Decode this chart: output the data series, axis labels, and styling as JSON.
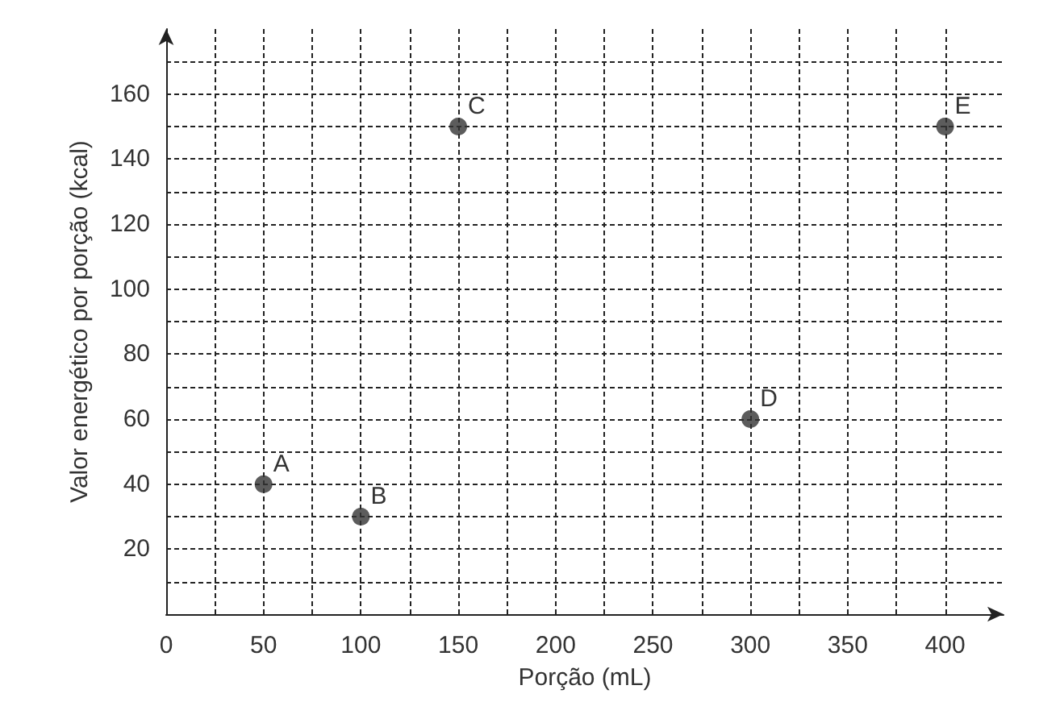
{
  "chart_data": {
    "type": "scatter",
    "xlabel": "Porção (mL)",
    "ylabel": "Valor energético por porção (kcal)",
    "x": [
      50,
      100,
      150,
      300,
      400
    ],
    "values": [
      40,
      30,
      150,
      60,
      150
    ],
    "color": "#333333",
    "marker": "circle",
    "grid": true,
    "xlim": [
      0,
      430
    ],
    "ylim": [
      0,
      180
    ],
    "xticks": [
      0,
      {
        "value": 25,
        "label": null
      },
      50,
      {
        "value": 75,
        "label": null
      },
      100,
      {
        "value": 125,
        "label": null
      },
      150,
      {
        "value": 175,
        "label": null
      },
      200,
      {
        "value": 225,
        "label": null
      },
      250,
      {
        "value": 275,
        "label": null
      },
      300,
      {
        "value": 325,
        "label": null
      },
      350,
      {
        "value": 375,
        "label": null
      },
      400
    ],
    "yticks": [
      {
        "value": 10,
        "label": null
      },
      20,
      {
        "value": 30,
        "label": null
      },
      40,
      {
        "value": 50,
        "label": null
      },
      60,
      {
        "value": 70,
        "label": null
      },
      80,
      {
        "value": 90,
        "label": null
      },
      100,
      {
        "value": 110,
        "label": null
      },
      120,
      {
        "value": 130,
        "label": null
      },
      140,
      {
        "value": 150,
        "label": null
      },
      160,
      {
        "value": 170,
        "label": null
      }
    ],
    "annotations": [
      {
        "text": "A",
        "x": 50,
        "y": 40
      },
      {
        "text": "B",
        "x": 100,
        "y": 30
      },
      {
        "text": "C",
        "x": 150,
        "y": 150
      },
      {
        "text": "D",
        "x": 300,
        "y": 60
      },
      {
        "text": "E",
        "x": 400,
        "y": 150
      }
    ]
  }
}
